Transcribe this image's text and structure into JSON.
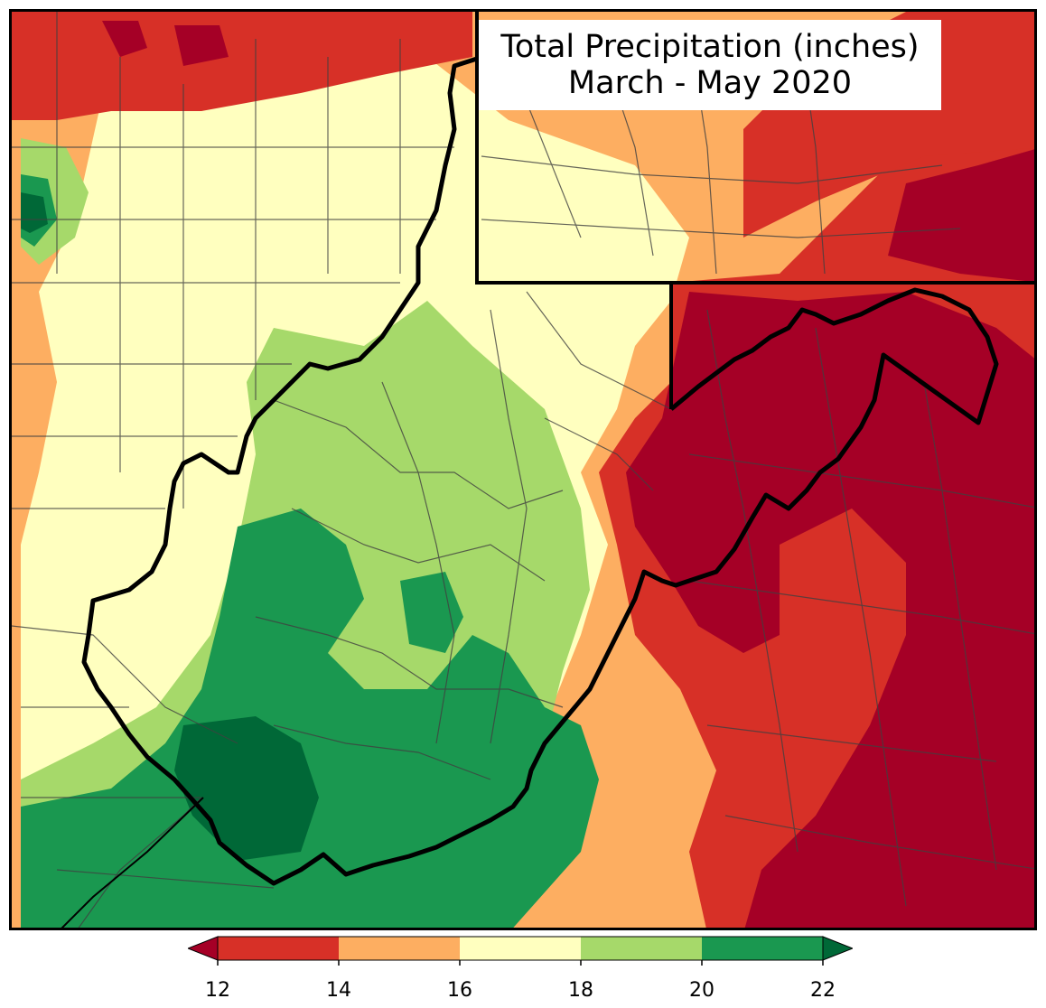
{
  "title": {
    "line1": "Total Precipitation (inches)",
    "line2": "March - May 2020"
  },
  "colorbar": {
    "ticks": [
      "12",
      "14",
      "16",
      "18",
      "20",
      "22"
    ],
    "bins": [
      {
        "range": "<12",
        "color": "#a50026"
      },
      {
        "range": "12-14",
        "color": "#d73027"
      },
      {
        "range": "14-16",
        "color": "#fdae61"
      },
      {
        "range": "16-18",
        "color": "#ffffbf"
      },
      {
        "range": "18-20",
        "color": "#a6d96a"
      },
      {
        "range": "20-22",
        "color": "#1a9850"
      },
      {
        "range": ">22",
        "color": "#006837"
      }
    ]
  },
  "colors": {
    "border": "#000000",
    "county_lines": "#404040"
  }
}
